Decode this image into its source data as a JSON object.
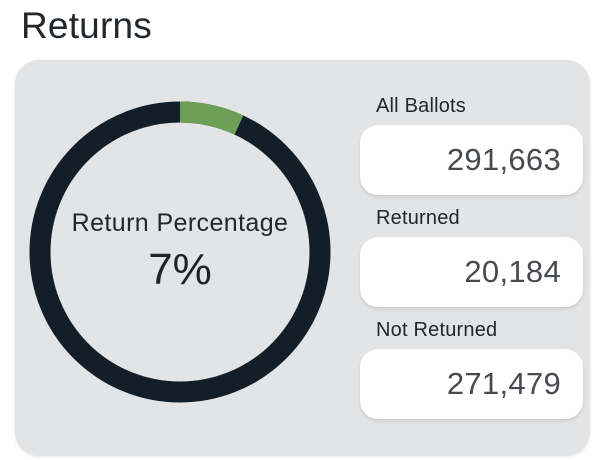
{
  "page": {
    "title": "Returns"
  },
  "donut": {
    "center_label": "Return Percentage",
    "center_value": "7%"
  },
  "stats": [
    {
      "label": "All Ballots",
      "value": "291,663"
    },
    {
      "label": "Returned",
      "value": "20,184"
    },
    {
      "label": "Not Returned",
      "value": "271,479"
    }
  ],
  "colors": {
    "card_background": "#E3E4E5",
    "value_text": "#474B50",
    "label_text": "#22272C"
  },
  "chart_data": {
    "type": "pie",
    "subtype": "donut",
    "title": "Return Percentage",
    "categories": [
      "Returned",
      "Not Returned"
    ],
    "values": [
      20184,
      271479
    ],
    "total": 291663,
    "percent_returned": 7,
    "center_label": "Return Percentage",
    "center_value": "7%",
    "colors": {
      "Returned": "#6CA057",
      "Not Returned": "#121E28"
    },
    "start_angle_deg": 0,
    "direction": "clockwise",
    "legend": "none"
  }
}
